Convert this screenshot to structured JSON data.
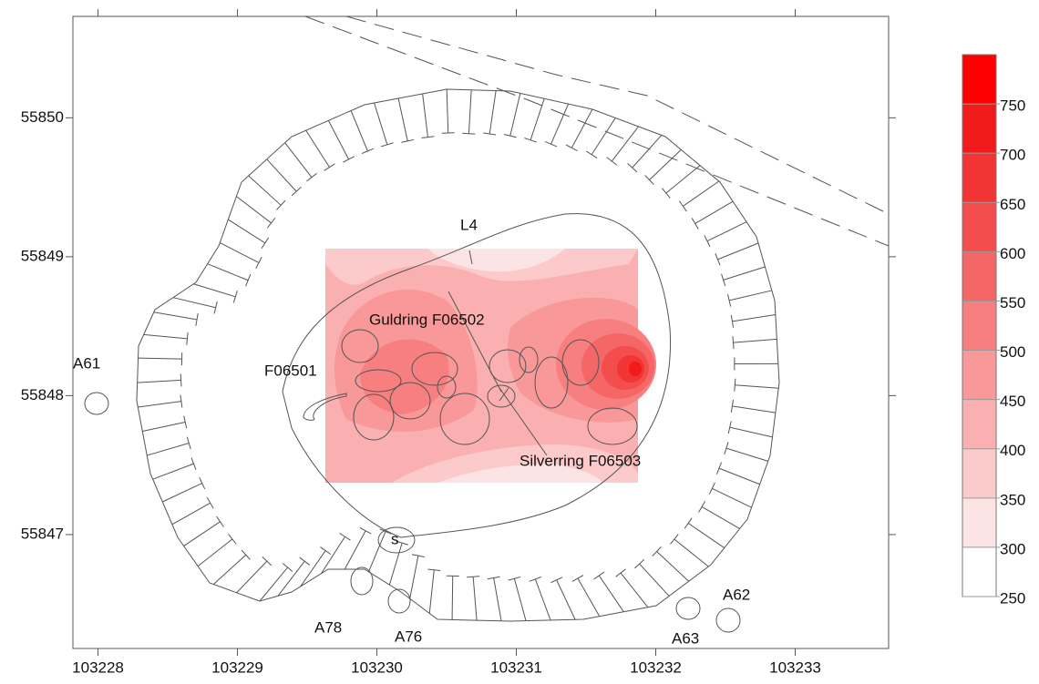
{
  "chart_data": {
    "type": "contour",
    "xlim": [
      103227.82,
      103233.67
    ],
    "ylim": [
      55846.18,
      55850.73
    ],
    "xticks": [
      103228,
      103229,
      103230,
      103231,
      103232,
      103233
    ],
    "yticks": [
      55847,
      55848,
      55849,
      55850
    ],
    "colorbar": {
      "lim": [
        250,
        800
      ],
      "ticks": [
        250,
        300,
        350,
        400,
        450,
        500,
        550,
        600,
        650,
        700,
        750
      ],
      "levels": [
        250,
        300,
        350,
        400,
        450,
        500,
        550,
        600,
        650,
        700,
        750
      ],
      "colors": [
        "#ffffff",
        "#fde4e4",
        "#fccaca",
        "#fab0b0",
        "#f89898",
        "#f77f7f",
        "#f56666",
        "#f44d4d",
        "#f23434",
        "#f11b1b",
        "#ff0000"
      ]
    },
    "annotations": [
      "L4",
      "Guldring F06502",
      "F06501",
      "Silverring F06503",
      "A61",
      "A78",
      "A76",
      "A63",
      "A62",
      "s"
    ]
  }
}
